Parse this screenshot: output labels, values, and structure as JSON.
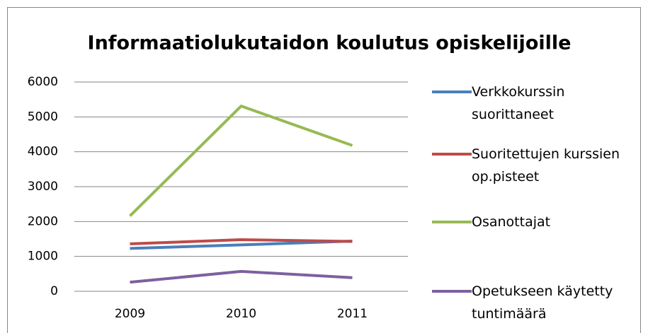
{
  "chart_data": {
    "type": "line",
    "title": "Informaatiolukutaidon koulutus opiskelijoille",
    "categories": [
      "2009",
      "2010",
      "2011"
    ],
    "series": [
      {
        "name": "Verkkokurssin suorittaneet",
        "color": "#4a7ebb",
        "values": [
          1230,
          1330,
          1440
        ]
      },
      {
        "name": "Suoritettujen kurssien op.pisteet",
        "color": "#be4b48",
        "values": [
          1360,
          1480,
          1430
        ]
      },
      {
        "name": "Osanottajat",
        "color": "#98b954",
        "values": [
          2160,
          5310,
          4180
        ]
      },
      {
        "name": "Opetukseen käytetty tuntimäärä",
        "color": "#7d60a0",
        "values": [
          260,
          570,
          390
        ]
      }
    ],
    "ylim": [
      0,
      6000
    ],
    "yticks": [
      0,
      1000,
      2000,
      3000,
      4000,
      5000,
      6000
    ],
    "grid": true,
    "legend": "right"
  }
}
